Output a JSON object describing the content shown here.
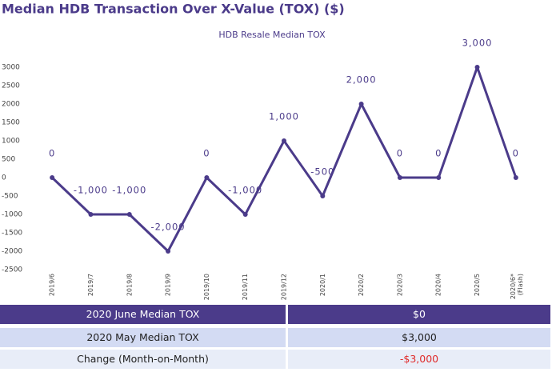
{
  "header": {
    "title": "Median HDB Transaction Over X-Value (TOX) ($)"
  },
  "chart_data": {
    "type": "line",
    "title": "HDB Resale Median TOX",
    "categories": [
      "2019/6",
      "2019/7",
      "2019/8",
      "2019/9",
      "2019/10",
      "2019/11",
      "2019/12",
      "2020/1",
      "2020/2",
      "2020/3",
      "2020/4",
      "2020/5",
      "2020/6*\n(Flash)"
    ],
    "values": [
      0,
      -1000,
      -1000,
      -2000,
      0,
      -1000,
      1000,
      -500,
      2000,
      0,
      0,
      3000,
      0
    ],
    "value_labels": [
      "0",
      "-1,000",
      "-1,000",
      "-2,000",
      "0",
      "-1,000",
      "1,000",
      "-500",
      "2,000",
      "0",
      "0",
      "3,000",
      "0"
    ],
    "color": "#4b3b8a",
    "ylim": [
      -2500,
      3000
    ],
    "yticks": [
      3000,
      2500,
      2000,
      1500,
      1000,
      500,
      0,
      -500,
      -1000,
      -1500,
      -2000,
      -2500
    ],
    "grid": false
  },
  "table": {
    "rows": [
      [
        "2020 June Median TOX",
        "$0"
      ],
      [
        "2020 May Median TOX",
        "$3,000"
      ],
      [
        "Change (Month-on-Month)",
        "-$3,000"
      ]
    ]
  }
}
